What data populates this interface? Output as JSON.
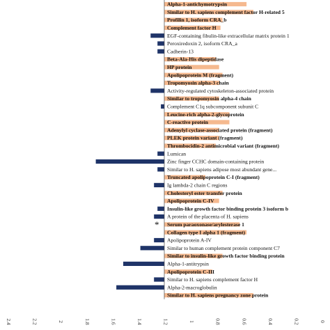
{
  "chart_data": {
    "type": "bar",
    "orientation": "horizontal",
    "title": "",
    "xlabel": "",
    "ylabel": "",
    "xlim": [
      -2.4,
      2.4
    ],
    "x_reversed": true,
    "x_ticks": [
      "2.4",
      "2.2",
      "2",
      "1.8",
      "1.6",
      "1.4",
      "1.2",
      "1",
      "0.8",
      "0.6",
      "0.4",
      "0.2",
      "0"
    ],
    "grid": false,
    "legend": "none",
    "colors": {
      "negative": "#1f3468",
      "positive": "#f5b98f"
    },
    "marker": "*",
    "categories": [
      "Alpha-1-antichymotrypsin",
      "Similar to H. sapiens complement factor H-related 5",
      "Profilin 1, isoform CRA_b",
      "Complement factor H",
      "EGF-containing fibulin-like extracellular matrix protein 1",
      "Peroxiredoxin 2, isoform CRA_a",
      "Cadherin-13",
      "Beta-Ala-His dipeptidase",
      "HP protein",
      "Apolipoprotein M (fragment)",
      "Tropomyosin alpha-3 chain",
      "Activity-regulated cytoskeleton-associated protein",
      "Similar to tropomyosin alpha-4 chain",
      "Complement C1q subcomponent subunit C",
      "Leucine-rich alpha-2-glycoprotein",
      "C-reactive protein",
      "Adenylyl cyclase-associated protein (fragment)",
      "PLEK protein variant (fragment)",
      "Thrombocidin-2 antimicrobial variant (fragment)",
      "Lumican",
      "Zinc finger CCHC domain-containing protein",
      "Similar to H. sapiens adipose most abundant gene...",
      "Truncated apolipoprotein C-I (fragment)",
      "Ig lambda-2 chain C regions",
      "Cholesteryl ester transfer protein",
      "Apolipoprotein C-IV",
      "Insulin-like growth factor binding protein 3 isoform b",
      "A protein of the placenta of H. sapiens",
      "Serum paraoxonase/arylesterase 1",
      "Collagen type I alpha 1 (fragment)",
      "Apolipoprotein A-IV",
      "Similar to human complement protein component C7",
      "Similar to insulin-like growth factor binding protein",
      "Alpha-1-antitrypsin",
      "Apolipoprotein C-III",
      "Similar to H. sapiens complement factor H",
      "Alpha-2-macroglobulin",
      "Similar to H. sapiens pregnancy zone protein"
    ],
    "values": [
      1.2,
      1.3,
      0.85,
      0.82,
      -0.2,
      -0.1,
      -0.1,
      0.75,
      0.8,
      0.85,
      0.8,
      -0.2,
      0.8,
      -0.05,
      0.95,
      0.95,
      0.8,
      0.8,
      0.75,
      -0.1,
      -1.0,
      -0.1,
      0.6,
      -0.15,
      0.85,
      0.8,
      -0.1,
      -0.15,
      1.1,
      1.2,
      -0.15,
      -0.35,
      0.85,
      -0.6,
      0.7,
      -0.15,
      -0.7,
      1.3
    ],
    "marked_category": "Serum paraoxonase/arylesterase 1",
    "highlighted_labels": [
      "Alpha-1-antichymotrypsin",
      "Similar to H. sapiens complement factor H-related 5",
      "Profilin 1, isoform CRA_b",
      "Complement factor H",
      "Beta-Ala-His dipeptidase",
      "HP protein",
      "Apolipoprotein M (fragment)",
      "Tropomyosin alpha-3 chain",
      "Similar to tropomyosin alpha-4 chain",
      "Leucine-rich alpha-2-glycoprotein",
      "C-reactive protein",
      "Adenylyl cyclase-associated protein (fragment)",
      "PLEK protein variant (fragment)",
      "Thrombocidin-2 antimicrobial variant (fragment)",
      "Truncated apolipoprotein C-I (fragment)",
      "Cholesteryl ester transfer protein",
      "Apolipoprotein C-IV",
      "Insulin-like growth factor binding protein 3 isoform b",
      "Serum paraoxonase/arylesterase 1",
      "Collagen type I alpha 1 (fragment)",
      "Similar to insulin-like growth factor binding protein",
      "Apolipoprotein C-III",
      "Similar to H. sapiens pregnancy zone protein"
    ]
  }
}
